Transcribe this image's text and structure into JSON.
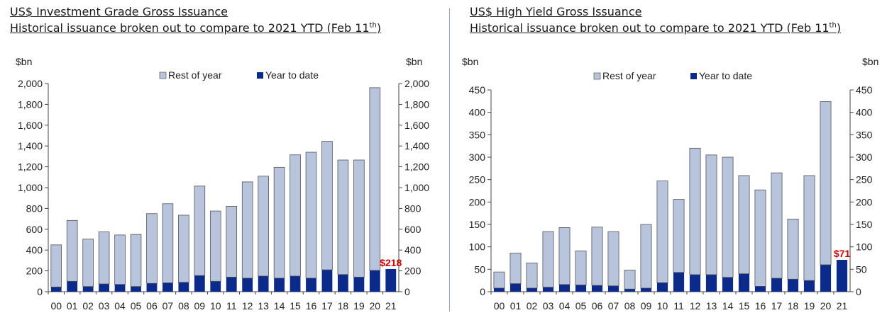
{
  "panels": [
    {
      "id": "ig",
      "title": "US$ Investment Grade Gross Issuance",
      "subtitle_pre": "Historical issuance broken out to compare to 2021 YTD (Feb 11",
      "subtitle_sup": "th",
      "subtitle_post": ")"
    },
    {
      "id": "hy",
      "title": "US$ High Yield Gross Issuance",
      "subtitle_pre": "Historical issuance broken out to compare to 2021 YTD (Feb 11",
      "subtitle_sup": "th",
      "subtitle_post": ")"
    }
  ],
  "chart_data": [
    {
      "type": "bar",
      "stacked": true,
      "title": "US$ Investment Grade Gross Issuance",
      "ylabel_left": "$bn",
      "ylabel_right": "$bn",
      "categories": [
        "00",
        "01",
        "02",
        "03",
        "04",
        "05",
        "06",
        "07",
        "08",
        "09",
        "10",
        "11",
        "12",
        "13",
        "14",
        "15",
        "16",
        "17",
        "18",
        "19",
        "20",
        "21"
      ],
      "ylim": [
        0,
        2000
      ],
      "yticks": [
        0,
        200,
        400,
        600,
        800,
        1000,
        1200,
        1400,
        1600,
        1800,
        2000
      ],
      "ytick_labels": [
        "0",
        "200",
        "400",
        "600",
        "800",
        "1,000",
        "1,200",
        "1,400",
        "1,600",
        "1,800",
        "2,000"
      ],
      "series": [
        {
          "name": "Year to date",
          "color": "#0b2a8a",
          "values": [
            45,
            100,
            50,
            75,
            70,
            50,
            80,
            85,
            90,
            155,
            100,
            140,
            130,
            150,
            130,
            150,
            130,
            210,
            165,
            140,
            205,
            218
          ]
        },
        {
          "name": "Rest of year",
          "color": "#b8c4dc",
          "values": [
            405,
            585,
            455,
            500,
            475,
            500,
            670,
            760,
            645,
            860,
            675,
            680,
            925,
            960,
            1065,
            1165,
            1210,
            1235,
            1100,
            1125,
            1755,
            0
          ]
        }
      ],
      "totals": [
        450,
        685,
        505,
        575,
        545,
        550,
        750,
        845,
        735,
        1015,
        775,
        820,
        1055,
        1110,
        1195,
        1315,
        1340,
        1445,
        1265,
        1265,
        1960,
        218
      ],
      "annotation": {
        "text": "$218",
        "category": "21",
        "color": "#cc0000"
      },
      "legend": {
        "position": "top",
        "items": [
          "Rest of year",
          "Year to date"
        ]
      },
      "grid": false
    },
    {
      "type": "bar",
      "stacked": true,
      "title": "US$ High Yield Gross Issuance",
      "ylabel_left": "$bn",
      "ylabel_right": "$bn",
      "categories": [
        "00",
        "01",
        "02",
        "03",
        "04",
        "05",
        "06",
        "07",
        "08",
        "09",
        "10",
        "11",
        "12",
        "13",
        "14",
        "15",
        "16",
        "17",
        "18",
        "19",
        "20",
        "21"
      ],
      "ylim": [
        0,
        450
      ],
      "yticks": [
        0,
        50,
        100,
        150,
        200,
        250,
        300,
        350,
        400,
        450
      ],
      "ytick_labels": [
        "0",
        "50",
        "100",
        "150",
        "200",
        "250",
        "300",
        "350",
        "400",
        "450"
      ],
      "series": [
        {
          "name": "Year to date",
          "color": "#0b2a8a",
          "values": [
            8,
            18,
            8,
            10,
            16,
            15,
            14,
            13,
            6,
            8,
            20,
            43,
            38,
            38,
            32,
            40,
            12,
            30,
            28,
            25,
            60,
            71
          ]
        },
        {
          "name": "Rest of year",
          "color": "#b8c4dc",
          "values": [
            36,
            68,
            56,
            124,
            127,
            76,
            130,
            121,
            42,
            142,
            227,
            163,
            282,
            267,
            268,
            219,
            215,
            235,
            134,
            234,
            364,
            0
          ]
        }
      ],
      "totals": [
        44,
        86,
        64,
        134,
        143,
        91,
        144,
        134,
        48,
        150,
        247,
        206,
        320,
        305,
        300,
        259,
        227,
        265,
        162,
        259,
        424,
        71
      ],
      "annotation": {
        "text": "$71",
        "category": "21",
        "color": "#cc0000"
      },
      "legend": {
        "position": "top",
        "items": [
          "Rest of year",
          "Year to date"
        ]
      },
      "grid": false
    }
  ]
}
